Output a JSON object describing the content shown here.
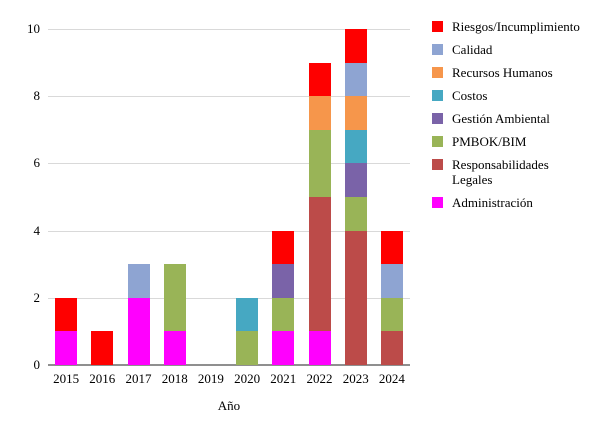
{
  "chart_data": {
    "type": "bar",
    "stacked": true,
    "title": "",
    "xlabel": "Año",
    "ylabel": "",
    "ylim": [
      0,
      10
    ],
    "yticks": [
      0,
      2,
      4,
      6,
      8,
      10
    ],
    "grid": true,
    "legend_position": "right",
    "categories": [
      "2015",
      "2016",
      "2017",
      "2018",
      "2019",
      "2020",
      "2021",
      "2022",
      "2023",
      "2024"
    ],
    "series": [
      {
        "name": "Administración",
        "color": "#FF00FE",
        "values": [
          1,
          0,
          2,
          1,
          0,
          0,
          1,
          1,
          0,
          0
        ]
      },
      {
        "name": "Responsabilidades Legales",
        "color": "#BC4B49",
        "values": [
          0,
          0,
          0,
          0,
          0,
          0,
          0,
          4,
          4,
          1
        ]
      },
      {
        "name": "PMBOK/BIM",
        "color": "#99B457",
        "values": [
          0,
          0,
          0,
          2,
          0,
          1,
          1,
          2,
          1,
          1
        ]
      },
      {
        "name": "Gestión Ambiental",
        "color": "#7A63A8",
        "values": [
          0,
          0,
          0,
          0,
          0,
          0,
          1,
          0,
          1,
          0
        ]
      },
      {
        "name": "Costos",
        "color": "#46A8C2",
        "values": [
          0,
          0,
          0,
          0,
          0,
          1,
          0,
          0,
          1,
          0
        ]
      },
      {
        "name": "Recursos Humanos",
        "color": "#F6964B",
        "values": [
          0,
          0,
          0,
          0,
          0,
          0,
          0,
          1,
          1,
          0
        ]
      },
      {
        "name": "Calidad",
        "color": "#8EA4D2",
        "values": [
          0,
          0,
          1,
          0,
          0,
          0,
          0,
          0,
          1,
          1
        ]
      },
      {
        "name": "Riesgos/Incumplimiento",
        "color": "#FE0000",
        "values": [
          1,
          1,
          0,
          0,
          0,
          0,
          1,
          1,
          1,
          1
        ]
      }
    ],
    "totals": [
      2,
      1,
      3,
      3,
      0,
      2,
      4,
      9,
      10,
      4
    ],
    "legend": [
      {
        "name": "Riesgos/Incumplimiento",
        "color": "#FE0000"
      },
      {
        "name": "Calidad",
        "color": "#8EA4D2"
      },
      {
        "name": "Recursos Humanos",
        "color": "#F6964B"
      },
      {
        "name": "Costos",
        "color": "#46A8C2"
      },
      {
        "name": "Gestión Ambiental",
        "color": "#7A63A8"
      },
      {
        "name": "PMBOK/BIM",
        "color": "#99B457"
      },
      {
        "name": "Responsabilidades Legales",
        "color": "#BC4B49"
      },
      {
        "name": "Administración",
        "color": "#FF00FE"
      }
    ],
    "colors": {
      "gridline": "#d9d9d9",
      "axis_line": "#8f8f8f"
    }
  }
}
